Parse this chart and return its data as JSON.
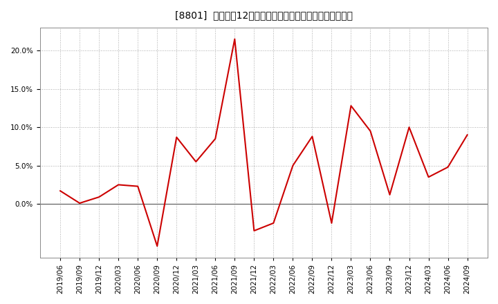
{
  "title": "[8801]  売上高の12か月移動合計の対前年同期増減率の推移",
  "line_color": "#cc0000",
  "bg_color": "#ffffff",
  "plot_bg_color": "#ffffff",
  "grid_color": "#aaaaaa",
  "dates": [
    "2019/06",
    "2019/09",
    "2019/12",
    "2020/03",
    "2020/06",
    "2020/09",
    "2020/12",
    "2021/03",
    "2021/06",
    "2021/09",
    "2021/12",
    "2022/03",
    "2022/06",
    "2022/09",
    "2022/12",
    "2023/03",
    "2023/06",
    "2023/09",
    "2023/12",
    "2024/03",
    "2024/06",
    "2024/09"
  ],
  "values": [
    1.7,
    0.1,
    0.9,
    2.5,
    2.3,
    -5.5,
    8.7,
    5.5,
    8.5,
    21.5,
    -3.5,
    -2.5,
    5.0,
    8.8,
    -2.5,
    12.8,
    9.5,
    1.2,
    10.0,
    3.5,
    4.8,
    9.0
  ],
  "ylim": [
    -7,
    23
  ],
  "yticks": [
    0.0,
    5.0,
    10.0,
    15.0,
    20.0
  ],
  "title_fontsize": 11,
  "tick_fontsize": 7.5
}
